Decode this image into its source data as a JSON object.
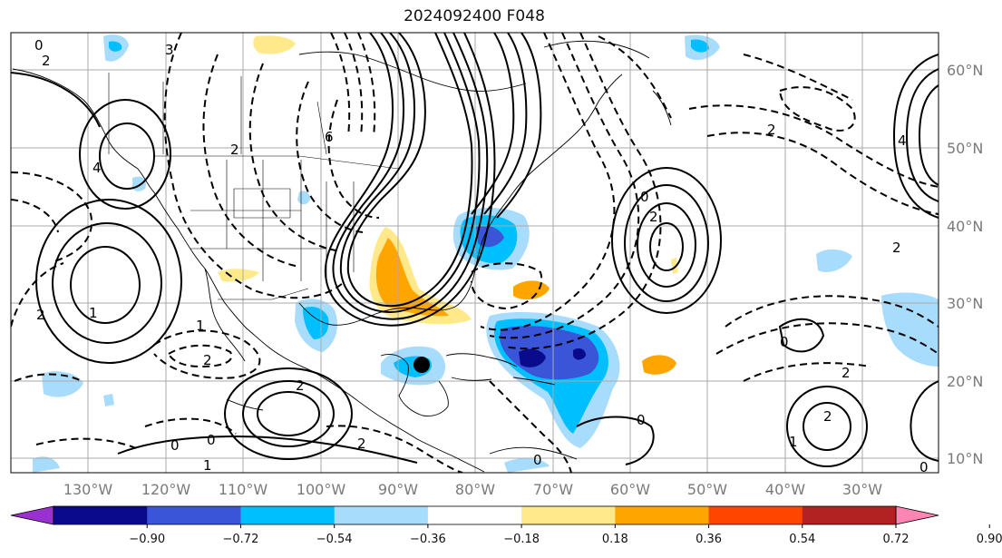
{
  "title": "2024092400 F048",
  "lat_labels": [
    "60°N",
    "50°N",
    "40°N",
    "30°N",
    "20°N",
    "10°N"
  ],
  "lon_labels": [
    "130°W",
    "120°W",
    "110°W",
    "100°W",
    "90°W",
    "80°W",
    "70°W",
    "60°W",
    "50°W",
    "40°W",
    "30°W"
  ],
  "colorbar": {
    "ticks": [
      "−0.90",
      "−0.72",
      "−0.54",
      "−0.36",
      "−0.18",
      "0.18",
      "0.36",
      "0.54",
      "0.72",
      "0.90"
    ],
    "colors": [
      "#9b30d0",
      "#0a0a8c",
      "#3a55d8",
      "#00bfff",
      "#a8dcfc",
      "#ffffff",
      "#ffe98a",
      "#ffa500",
      "#ff4500",
      "#b22222",
      "#ff85b3"
    ]
  },
  "contour_labels": [
    "0",
    "3",
    "2",
    "1",
    "4",
    "6",
    "2",
    "0",
    "0",
    "2",
    "2",
    "2",
    "1",
    "2",
    "0",
    "2",
    "2",
    "0",
    "0",
    "1",
    "1",
    "2",
    "4",
    "0",
    "0",
    "2",
    "2"
  ],
  "storm_marker": "tropical-cyclone-position",
  "fill_colors": {
    "light_blue": "#a8dcfc",
    "blue": "#00bfff",
    "mid_blue": "#3a55d8",
    "navy": "#0a0a8c",
    "light_yellow": "#ffe98a",
    "orange": "#ffa500"
  }
}
